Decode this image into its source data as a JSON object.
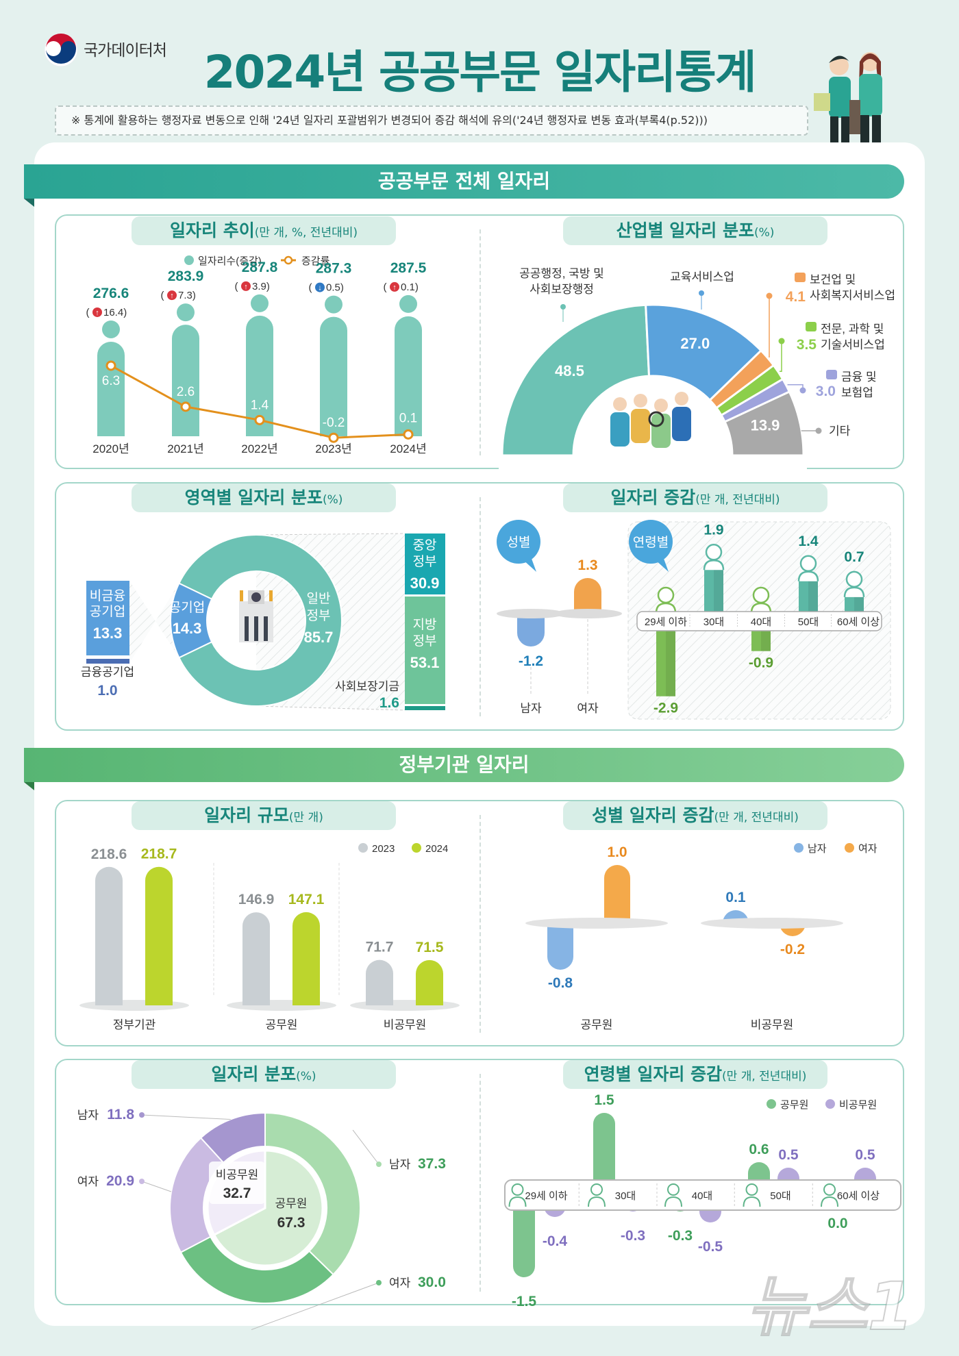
{
  "header": {
    "agency": "국가데이터처",
    "title": "2024년 공공부문 일자리통계",
    "note": "※ 통계에 활용하는 행정자료 변동으로 인해 '24년 일자리 포괄범위가 변경되어 증감 해석에 유의('24년 행정자료 변동 효과(부록4(p.52)))"
  },
  "sections": {
    "total": "공공부문 전체 일자리",
    "gov": "정부기관 일자리"
  },
  "watermark": "뉴스1",
  "chart_data": [
    {
      "type": "bar+line",
      "title": "일자리 추이",
      "unit": "(만 개, %, 전년대비)",
      "categories": [
        "2020년",
        "2021년",
        "2022년",
        "2023년",
        "2024년"
      ],
      "legend": [
        "일자리수(증감)",
        "증감률"
      ],
      "series": [
        {
          "name": "일자리수(증감)",
          "values": [
            276.6,
            283.9,
            287.8,
            287.3,
            287.5
          ],
          "changes": [
            16.4,
            7.3,
            3.9,
            0.5,
            0.1
          ],
          "change_direction": [
            "up",
            "up",
            "up",
            "down",
            "up"
          ],
          "color": "#7ecbbb"
        },
        {
          "name": "증감률",
          "values": [
            6.3,
            2.6,
            1.4,
            -0.2,
            0.1
          ],
          "color": "#e3901c"
        }
      ]
    },
    {
      "type": "pie",
      "variant": "half-donut",
      "title": "산업별 일자리 분포",
      "unit": "(%)",
      "categories": [
        {
          "label_lines": [
            "공공행정, 국방 및",
            "사회보장행정"
          ],
          "value": 48.5,
          "color": "#6cc2b4"
        },
        {
          "label_lines": [
            "교육서비스업"
          ],
          "value": 27.0,
          "color": "#5aa2dc"
        },
        {
          "label_lines": [
            "보건업 및",
            "사회복지서비스업"
          ],
          "value": 4.1,
          "color": "#f3a15a"
        },
        {
          "label_lines": [
            "전문, 과학 및",
            "기술서비스업"
          ],
          "value": 3.5,
          "color": "#8ccf4a"
        },
        {
          "label_lines": [
            "금융 및",
            "보험업"
          ],
          "value": 3.0,
          "color": "#9ea3dc"
        },
        {
          "label_lines": [
            "기타"
          ],
          "value": 13.9,
          "color": "#a9a9a9"
        }
      ]
    },
    {
      "type": "pie",
      "variant": "donut",
      "title": "영역별 일자리 분포",
      "unit": "(%)",
      "slices": [
        {
          "label_lines": [
            "일반",
            "정부"
          ],
          "value": 85.7,
          "color": "#6cc2b4",
          "breakdown": [
            {
              "label_lines": [
                "중앙",
                "정부"
              ],
              "value": 30.9,
              "color": "#1aa7b0"
            },
            {
              "label_lines": [
                "지방",
                "정부"
              ],
              "value": 53.1,
              "color": "#6ec49a"
            },
            {
              "label_lines": [
                "사회보장기금"
              ],
              "value": 1.6,
              "color": "#1e9a88"
            }
          ]
        },
        {
          "label_lines": [
            "공기업"
          ],
          "value": 14.3,
          "color": "#5a9fdc",
          "breakdown": [
            {
              "label_lines": [
                "비금융",
                "공기업"
              ],
              "value": 13.3,
              "color": "#5a9fdc"
            },
            {
              "label_lines": [
                "금융공기업"
              ],
              "value": 1.0,
              "color": "#4b6db3"
            }
          ]
        }
      ]
    },
    {
      "type": "bar",
      "title": "일자리 증감",
      "unit": "(만 개, 전년대비)",
      "groups": [
        {
          "label": "성별",
          "categories": [
            "남자",
            "여자"
          ],
          "values": [
            -1.2,
            1.3
          ],
          "colors": [
            "#7ba9df",
            "#f1a34c"
          ]
        },
        {
          "label": "연령별",
          "categories": [
            "29세 이하",
            "30대",
            "40대",
            "50대",
            "60세 이상"
          ],
          "values": [
            -2.9,
            1.9,
            -0.9,
            1.4,
            0.7
          ],
          "colors": [
            "#7dbd55",
            "#5cb8a5"
          ]
        }
      ]
    },
    {
      "type": "bar",
      "title": "일자리 규모",
      "unit": "(만 개)",
      "categories": [
        "정부기관",
        "공무원",
        "비공무원"
      ],
      "series": [
        {
          "name": "2023",
          "values": [
            218.6,
            146.9,
            71.7
          ],
          "color": "#c9cfd3"
        },
        {
          "name": "2024",
          "values": [
            218.7,
            147.1,
            71.5
          ],
          "color": "#bcd52d"
        }
      ]
    },
    {
      "type": "bar",
      "title": "성별 일자리 증감",
      "unit": "(만 개, 전년대비)",
      "categories": [
        "공무원",
        "비공무원"
      ],
      "series": [
        {
          "name": "남자",
          "values": [
            -0.8,
            0.1
          ],
          "color": "#86b4e4"
        },
        {
          "name": "여자",
          "values": [
            1.0,
            -0.2
          ],
          "color": "#f4a94a"
        }
      ]
    },
    {
      "type": "pie",
      "variant": "nested-donut",
      "title": "일자리 분포",
      "unit": "(%)",
      "inner": [
        {
          "label": "공무원",
          "value": 67.3,
          "color": "#d6edd5"
        },
        {
          "label": "비공무원",
          "value": 32.7,
          "color": "#f1ecf8"
        }
      ],
      "outer": [
        {
          "group": "공무원",
          "label": "남자",
          "value": 37.3,
          "color": "#a9dcae"
        },
        {
          "group": "공무원",
          "label": "여자",
          "value": 30.0,
          "color": "#6cc082"
        },
        {
          "group": "비공무원",
          "label": "여자",
          "value": 20.9,
          "color": "#cabbe2"
        },
        {
          "group": "비공무원",
          "label": "남자",
          "value": 11.8,
          "color": "#a596cf"
        }
      ]
    },
    {
      "type": "bar",
      "title": "연령별 일자리 증감",
      "unit": "(만 개, 전년대비)",
      "categories": [
        "29세 이하",
        "30대",
        "40대",
        "50대",
        "60세 이상"
      ],
      "series": [
        {
          "name": "공무원",
          "values": [
            -1.5,
            1.5,
            -0.3,
            0.6,
            0.0
          ],
          "color": "#7dc48e"
        },
        {
          "name": "비공무원",
          "values": [
            -0.4,
            -0.3,
            -0.5,
            0.5,
            0.5
          ],
          "color": "#b5a8da"
        }
      ]
    }
  ]
}
